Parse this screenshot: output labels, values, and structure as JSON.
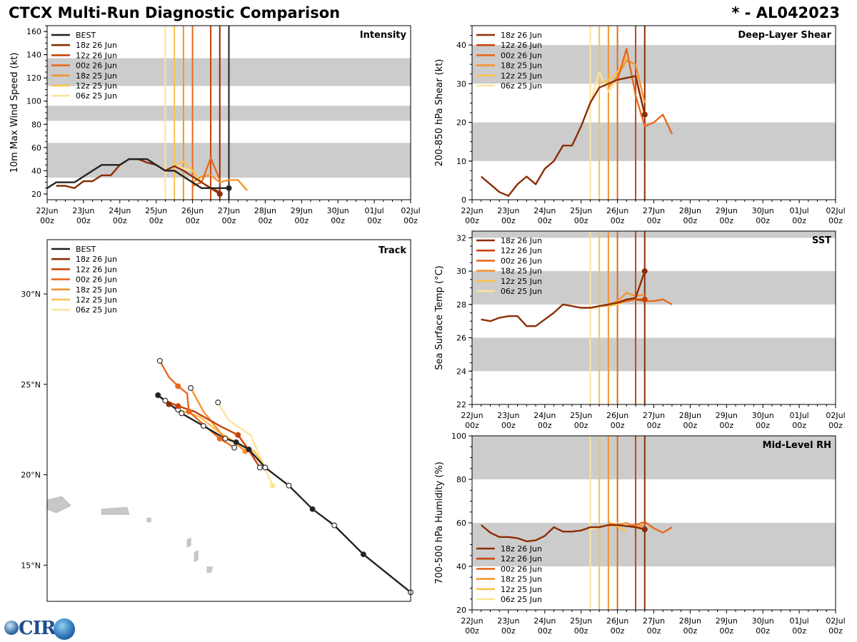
{
  "header": {
    "title": "CTCX Multi-Run Diagnostic Comparison",
    "storm": "* - AL042023"
  },
  "colors": {
    "BEST": "#222222",
    "18z 26 Jun": "#8c2d04",
    "12z 26 Jun": "#c94408",
    "00z 26 Jun": "#e8691e",
    "18z 25 Jun": "#f6932e",
    "12z 25 Jun": "#fbc14c",
    "06z 25 Jun": "#fde49a",
    "band": "#cccccc"
  },
  "time_axis": {
    "ticks": [
      "22Jun\n00z",
      "23Jun\n00z",
      "24Jun\n00z",
      "25Jun\n00z",
      "26Jun\n00z",
      "27Jun\n00z",
      "28Jun\n00z",
      "29Jun\n00z",
      "30Jun\n00z",
      "01Jul\n00z",
      "02Jul\n00z"
    ],
    "note": "x values are hours after 22Jun 00z"
  },
  "init_lines": [
    {
      "name": "06z 25 Jun",
      "hour": 78
    },
    {
      "name": "12z 25 Jun",
      "hour": 84
    },
    {
      "name": "18z 25 Jun",
      "hour": 90
    },
    {
      "name": "00z 26 Jun",
      "hour": 96
    },
    {
      "name": "12z 26 Jun",
      "hour": 108
    },
    {
      "name": "18z 26 Jun",
      "hour": 114
    }
  ],
  "chart_data": [
    {
      "id": "intensity",
      "type": "line",
      "title": "Intensity",
      "ylabel": "10m Max Wind Speed (kt)",
      "xlim": [
        0,
        240
      ],
      "ylim": [
        15,
        165
      ],
      "yticks": [
        20,
        40,
        60,
        80,
        100,
        120,
        140,
        160
      ],
      "bands": [
        [
          34,
          64
        ],
        [
          83,
          96
        ],
        [
          113,
          137
        ]
      ],
      "best_line": {
        "hour": 120
      },
      "legend": [
        "BEST",
        "18z 26 Jun",
        "12z 26 Jun",
        "00z 26 Jun",
        "18z 25 Jun",
        "12z 25 Jun",
        "06z 25 Jun"
      ],
      "series": [
        {
          "name": "BEST",
          "x": [
            0,
            6,
            12,
            18,
            24,
            30,
            36,
            42,
            48,
            54,
            60,
            66,
            72,
            78,
            84,
            90,
            96,
            102,
            108,
            114,
            120
          ],
          "y": [
            25,
            30,
            30,
            30,
            35,
            40,
            45,
            45,
            45,
            50,
            50,
            50,
            45,
            40,
            40,
            35,
            30,
            25,
            25,
            25,
            25
          ],
          "end_marker": true
        },
        {
          "name": "18z 26 Jun",
          "x": [
            6,
            12,
            18,
            24,
            30,
            36,
            42,
            48,
            54,
            60,
            66,
            72,
            78,
            84,
            90,
            96,
            102,
            108,
            114
          ],
          "y": [
            27,
            27,
            25,
            31,
            31,
            36,
            36,
            45,
            50,
            50,
            47,
            45,
            40,
            44,
            40,
            35,
            30,
            25,
            20
          ],
          "end_marker": true
        },
        {
          "name": "12z 26 Jun",
          "x": [
            108,
            114
          ],
          "y": [
            25,
            22
          ]
        },
        {
          "name": "00z 26 Jun",
          "x": [
            96,
            102,
            108,
            114
          ],
          "y": [
            27,
            30,
            51,
            32
          ]
        },
        {
          "name": "18z 25 Jun",
          "x": [
            90,
            96,
            102,
            108,
            114,
            120,
            126,
            132
          ],
          "y": [
            35,
            30,
            35,
            36,
            30,
            32,
            32,
            23
          ]
        },
        {
          "name": "12z 25 Jun",
          "x": [
            84,
            90,
            96,
            102
          ],
          "y": [
            45,
            48,
            40,
            30
          ]
        },
        {
          "name": "06z 25 Jun",
          "x": [
            78,
            84,
            90,
            96
          ],
          "y": [
            38,
            45,
            42,
            40
          ]
        }
      ]
    },
    {
      "id": "shear",
      "type": "line",
      "title": "Deep-Layer Shear",
      "ylabel": "200-850 hPa Shear (kt)",
      "xlim": [
        0,
        240
      ],
      "ylim": [
        0,
        45
      ],
      "yticks": [
        0,
        10,
        20,
        30,
        40
      ],
      "bands": [
        [
          10,
          20
        ],
        [
          30,
          40
        ]
      ],
      "legend": [
        "18z 26 Jun",
        "12z 26 Jun",
        "00z 26 Jun",
        "18z 25 Jun",
        "12z 25 Jun",
        "06z 25 Jun"
      ],
      "series": [
        {
          "name": "18z 26 Jun",
          "x": [
            6,
            12,
            18,
            24,
            30,
            36,
            42,
            48,
            54,
            60,
            66,
            72,
            78,
            84,
            90,
            96,
            102,
            108,
            114
          ],
          "y": [
            6,
            4,
            2,
            1,
            4,
            6,
            4,
            8,
            10,
            14,
            14,
            19,
            25,
            29,
            30,
            31,
            31.5,
            32,
            22
          ],
          "end_marker": true
        },
        {
          "name": "12z 26 Jun",
          "x": [
            108,
            114
          ],
          "y": [
            32,
            22
          ],
          "end_marker": true
        },
        {
          "name": "00z 26 Jun",
          "x": [
            96,
            102,
            108,
            114,
            120,
            126,
            132
          ],
          "y": [
            31,
            39,
            27,
            19,
            20,
            22,
            17
          ]
        },
        {
          "name": "18z 25 Jun",
          "x": [
            90,
            96,
            102,
            108,
            114
          ],
          "y": [
            29,
            32,
            36,
            35,
            25
          ]
        },
        {
          "name": "12z 25 Jun",
          "x": [
            84,
            90,
            96,
            102
          ],
          "y": [
            30,
            31,
            33,
            37
          ]
        },
        {
          "name": "06z 25 Jun",
          "x": [
            78,
            84,
            90,
            96
          ],
          "y": [
            25,
            33,
            28,
            31
          ]
        }
      ]
    },
    {
      "id": "sst",
      "type": "line",
      "title": "SST",
      "ylabel": "Sea Surface Temp (°C)",
      "xlim": [
        0,
        240
      ],
      "ylim": [
        22,
        32.4
      ],
      "yticks": [
        22,
        24,
        26,
        28,
        30,
        32
      ],
      "bands": [
        [
          24,
          26
        ],
        [
          28,
          30
        ],
        [
          32,
          32.4
        ]
      ],
      "legend": [
        "18z 26 Jun",
        "12z 26 Jun",
        "00z 26 Jun",
        "18z 25 Jun",
        "12z 25 Jun",
        "06z 25 Jun"
      ],
      "series": [
        {
          "name": "18z 26 Jun",
          "x": [
            6,
            12,
            18,
            24,
            30,
            36,
            42,
            48,
            54,
            60,
            66,
            72,
            78,
            84,
            90,
            96,
            102,
            108,
            114
          ],
          "y": [
            27.1,
            27,
            27.2,
            27.3,
            27.3,
            26.7,
            26.7,
            27.1,
            27.5,
            28,
            27.9,
            27.8,
            27.8,
            27.9,
            28,
            28.1,
            28.3,
            28.4,
            30
          ],
          "end_marker": true
        },
        {
          "name": "12z 26 Jun",
          "x": [
            108,
            114
          ],
          "y": [
            28.3,
            28.3
          ],
          "end_marker": true
        },
        {
          "name": "00z 26 Jun",
          "x": [
            96,
            102,
            108,
            114,
            120,
            126,
            132
          ],
          "y": [
            28.1,
            28.2,
            28.3,
            28.2,
            28.2,
            28.3,
            28
          ]
        },
        {
          "name": "18z 25 Jun",
          "x": [
            90,
            96,
            102,
            108,
            114
          ],
          "y": [
            28,
            28.2,
            28.7,
            28.5,
            28.6
          ]
        },
        {
          "name": "12z 25 Jun",
          "x": [
            84,
            90,
            96,
            102
          ],
          "y": [
            27.9,
            27.9,
            28,
            28.2
          ]
        },
        {
          "name": "06z 25 Jun",
          "x": [
            78,
            84,
            90,
            96
          ],
          "y": [
            27.7,
            27.9,
            27.9,
            28
          ]
        }
      ]
    },
    {
      "id": "rh",
      "type": "line",
      "title": "Mid-Level RH",
      "ylabel": "700-500 hPa Humidity (%)",
      "xlim": [
        0,
        240
      ],
      "ylim": [
        20,
        100
      ],
      "yticks": [
        20,
        40,
        60,
        80,
        100
      ],
      "bands": [
        [
          40,
          60
        ],
        [
          80,
          100
        ]
      ],
      "legend": [
        "18z 26 Jun",
        "12z 26 Jun",
        "00z 26 Jun",
        "18z 25 Jun",
        "12z 25 Jun",
        "06z 25 Jun"
      ],
      "series": [
        {
          "name": "18z 26 Jun",
          "x": [
            6,
            12,
            18,
            24,
            30,
            36,
            42,
            48,
            54,
            60,
            66,
            72,
            78,
            84,
            90,
            96,
            102,
            108,
            114
          ],
          "y": [
            59,
            55.5,
            53.5,
            53.5,
            53,
            51.5,
            52,
            54,
            58,
            56,
            56,
            56.5,
            58,
            58,
            59,
            59,
            58.5,
            58,
            57
          ],
          "end_marker": true
        },
        {
          "name": "12z 26 Jun",
          "x": [
            108,
            114
          ],
          "y": [
            58,
            57
          ],
          "end_marker": true
        },
        {
          "name": "00z 26 Jun",
          "x": [
            96,
            102,
            108,
            114,
            120,
            126,
            132
          ],
          "y": [
            59,
            58.5,
            59,
            60.5,
            57.5,
            55.5,
            58
          ]
        },
        {
          "name": "18z 25 Jun",
          "x": [
            90,
            96,
            102,
            108,
            114
          ],
          "y": [
            60,
            59,
            60,
            58,
            59
          ]
        },
        {
          "name": "12z 25 Jun",
          "x": [
            84,
            90,
            96,
            102
          ],
          "y": [
            58,
            59,
            58.5,
            56
          ]
        },
        {
          "name": "06z 25 Jun",
          "x": [
            78,
            84,
            90,
            96
          ],
          "y": [
            57,
            58,
            59,
            60
          ]
        }
      ]
    },
    {
      "id": "track",
      "type": "line",
      "title": "Track",
      "lon_range": [
        -62.0,
        -42.0
      ],
      "lat_range": [
        13.0,
        33.0
      ],
      "yticks": [
        {
          "lat": 15,
          "label": "15°N"
        },
        {
          "lat": 20,
          "label": "20°N"
        },
        {
          "lat": 25,
          "label": "25°N"
        },
        {
          "lat": 30,
          "label": "30°N"
        }
      ],
      "legend": [
        "BEST",
        "18z 26 Jun",
        "12z 26 Jun",
        "00z 26 Jun",
        "18z 25 Jun",
        "12z 25 Jun",
        "06z 25 Jun"
      ],
      "series": [
        {
          "name": "BEST",
          "lon": [
            -42.0,
            -44.6,
            -46.2,
            -47.4,
            -48.7,
            -50.0,
            -50.9,
            -51.6,
            -52.2,
            -53.4,
            -54.6,
            -55.9
          ],
          "lat": [
            13.5,
            15.6,
            17.2,
            18.1,
            19.4,
            20.4,
            21.4,
            21.8,
            22.0,
            22.7,
            23.4,
            24.4
          ],
          "filled": [
            false,
            true,
            false,
            true,
            false,
            false,
            true,
            true,
            false,
            false,
            false,
            true
          ],
          "marker_every": 1
        },
        {
          "name": "18z 26 Jun",
          "lon": [
            -55.9,
            -55.3
          ],
          "lat": [
            24.4,
            23.9
          ],
          "filled": [
            true,
            true
          ]
        },
        {
          "name": "12z 26 Jun",
          "lon": [
            -55.5,
            -54.8,
            -53.9,
            -52.5,
            -51.5,
            -51.0,
            -50.3
          ],
          "lat": [
            24.1,
            23.8,
            23.5,
            22.7,
            22.2,
            21.5,
            20.4
          ],
          "filled": [
            false,
            true,
            false,
            false,
            true,
            false,
            false
          ]
        },
        {
          "name": "00z 26 Jun",
          "lon": [
            -55.8,
            -55.3,
            -54.8,
            -54.3,
            -54.2,
            -53.2,
            -52.5,
            -51.7
          ],
          "lat": [
            26.3,
            25.4,
            24.9,
            24.5,
            23.5,
            22.6,
            22.0,
            21.5
          ],
          "filled": [
            false,
            false,
            true,
            false,
            true,
            false,
            true,
            false
          ]
        },
        {
          "name": "18z 25 Jun",
          "lon": [
            -54.1,
            -53.4,
            -52.3,
            -51.7,
            -51.1
          ],
          "lat": [
            24.8,
            23.5,
            22.1,
            21.8,
            21.3
          ],
          "filled": [
            false,
            false,
            false,
            false,
            true
          ]
        },
        {
          "name": "12z 25 Jun",
          "lon": [
            -54.8,
            -53.6,
            -52.6,
            -51.3,
            -50.6,
            -50.0
          ],
          "lat": [
            23.6,
            23.2,
            22.4,
            21.6,
            21.3,
            20.4
          ],
          "filled": [
            false,
            false,
            false,
            false,
            false,
            false
          ]
        },
        {
          "name": "06z 25 Jun",
          "lon": [
            -52.6,
            -52.0,
            -50.8,
            -49.6
          ],
          "lat": [
            24.0,
            23.0,
            22.2,
            19.4
          ],
          "filled": [
            false,
            false,
            false,
            true
          ]
        }
      ]
    }
  ],
  "logo": {
    "text": "CIRA"
  }
}
